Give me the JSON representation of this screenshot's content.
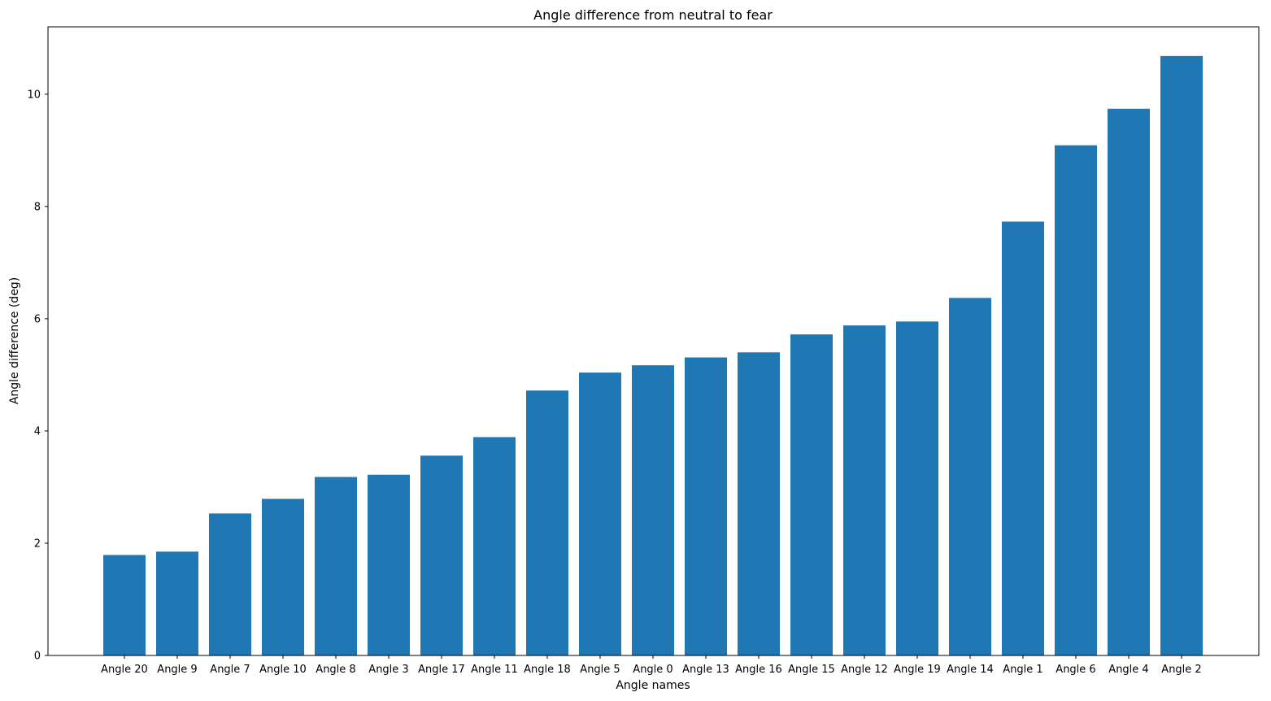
{
  "chart_data": {
    "type": "bar",
    "title": "Angle difference from neutral to fear",
    "xlabel": "Angle names",
    "ylabel": "Angle difference (deg)",
    "categories": [
      "Angle 20",
      "Angle 9",
      "Angle 7",
      "Angle 10",
      "Angle 8",
      "Angle 3",
      "Angle 17",
      "Angle 11",
      "Angle 18",
      "Angle 5",
      "Angle 0",
      "Angle 13",
      "Angle 16",
      "Angle 15",
      "Angle 12",
      "Angle 19",
      "Angle 14",
      "Angle 1",
      "Angle 6",
      "Angle 4",
      "Angle 2"
    ],
    "values": [
      1.79,
      1.85,
      2.53,
      2.79,
      3.18,
      3.22,
      3.56,
      3.89,
      4.72,
      5.04,
      5.17,
      5.31,
      5.4,
      5.72,
      5.88,
      5.95,
      6.37,
      7.73,
      9.09,
      9.74,
      10.68
    ],
    "ylim": [
      0,
      11.2
    ],
    "yticks": [
      0,
      2,
      4,
      6,
      8,
      10
    ],
    "bar_color": "#1f77b4",
    "grid": false,
    "legend": "none"
  }
}
